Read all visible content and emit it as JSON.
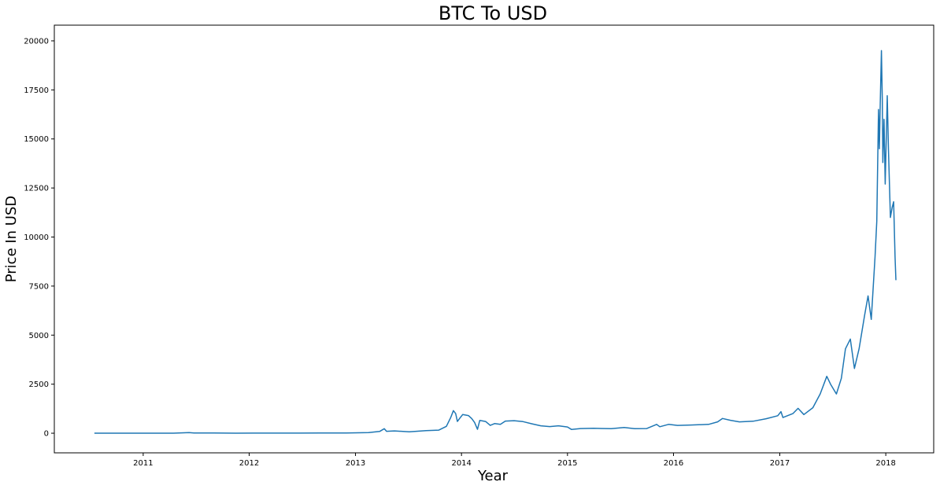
{
  "chart_data": {
    "type": "line",
    "title": "BTC To USD",
    "xlabel": "Year",
    "ylabel": "Price In USD",
    "xlim": [
      "2010-03-01",
      "2018-06-15"
    ],
    "ylim": [
      -1000,
      20800
    ],
    "x_ticks": [
      {
        "date": "2011-01-01",
        "label": "2011"
      },
      {
        "date": "2012-01-01",
        "label": "2012"
      },
      {
        "date": "2013-01-01",
        "label": "2013"
      },
      {
        "date": "2014-01-01",
        "label": "2014"
      },
      {
        "date": "2015-01-01",
        "label": "2015"
      },
      {
        "date": "2016-01-01",
        "label": "2016"
      },
      {
        "date": "2017-01-01",
        "label": "2017"
      },
      {
        "date": "2018-01-01",
        "label": "2018"
      }
    ],
    "y_ticks": [
      {
        "value": 0,
        "label": "0"
      },
      {
        "value": 2500,
        "label": "2500"
      },
      {
        "value": 5000,
        "label": "5000"
      },
      {
        "value": 7500,
        "label": "7500"
      },
      {
        "value": 10000,
        "label": "10000"
      },
      {
        "value": 12500,
        "label": "12500"
      },
      {
        "value": 15000,
        "label": "15000"
      },
      {
        "value": 17500,
        "label": "17500"
      },
      {
        "value": 20000,
        "label": "20000"
      }
    ],
    "grid": false,
    "series": [
      {
        "color": "#1f77b4",
        "points": [
          [
            "2010-07-17",
            0.05
          ],
          [
            "2010-11-01",
            0.3
          ],
          [
            "2011-02-01",
            1
          ],
          [
            "2011-04-15",
            1.5
          ],
          [
            "2011-06-08",
            30
          ],
          [
            "2011-06-25",
            15
          ],
          [
            "2011-09-01",
            8
          ],
          [
            "2011-11-15",
            2.5
          ],
          [
            "2012-01-15",
            6
          ],
          [
            "2012-06-01",
            6
          ],
          [
            "2012-09-01",
            12
          ],
          [
            "2012-12-01",
            13
          ],
          [
            "2013-02-15",
            30
          ],
          [
            "2013-03-25",
            90
          ],
          [
            "2013-04-10",
            230
          ],
          [
            "2013-04-18",
            100
          ],
          [
            "2013-05-15",
            120
          ],
          [
            "2013-07-05",
            70
          ],
          [
            "2013-09-01",
            135
          ],
          [
            "2013-10-15",
            160
          ],
          [
            "2013-11-10",
            350
          ],
          [
            "2013-11-25",
            800
          ],
          [
            "2013-12-04",
            1150
          ],
          [
            "2013-12-12",
            1000
          ],
          [
            "2013-12-18",
            600
          ],
          [
            "2013-12-28",
            800
          ],
          [
            "2014-01-05",
            950
          ],
          [
            "2014-01-25",
            900
          ],
          [
            "2014-02-05",
            750
          ],
          [
            "2014-02-15",
            550
          ],
          [
            "2014-02-25",
            200
          ],
          [
            "2014-03-05",
            650
          ],
          [
            "2014-03-25",
            600
          ],
          [
            "2014-04-10",
            400
          ],
          [
            "2014-04-25",
            490
          ],
          [
            "2014-05-15",
            450
          ],
          [
            "2014-06-01",
            620
          ],
          [
            "2014-07-01",
            640
          ],
          [
            "2014-08-01",
            590
          ],
          [
            "2014-09-01",
            480
          ],
          [
            "2014-10-01",
            380
          ],
          [
            "2014-11-01",
            340
          ],
          [
            "2014-12-01",
            380
          ],
          [
            "2015-01-01",
            320
          ],
          [
            "2015-01-15",
            190
          ],
          [
            "2015-02-15",
            240
          ],
          [
            "2015-04-01",
            250
          ],
          [
            "2015-06-01",
            230
          ],
          [
            "2015-07-15",
            290
          ],
          [
            "2015-08-20",
            230
          ],
          [
            "2015-10-01",
            240
          ],
          [
            "2015-11-04",
            450
          ],
          [
            "2015-11-15",
            330
          ],
          [
            "2015-12-15",
            450
          ],
          [
            "2016-01-15",
            400
          ],
          [
            "2016-03-01",
            420
          ],
          [
            "2016-05-01",
            450
          ],
          [
            "2016-06-01",
            580
          ],
          [
            "2016-06-18",
            750
          ],
          [
            "2016-07-15",
            660
          ],
          [
            "2016-08-15",
            580
          ],
          [
            "2016-10-01",
            610
          ],
          [
            "2016-11-15",
            740
          ],
          [
            "2016-12-25",
            890
          ],
          [
            "2017-01-05",
            1100
          ],
          [
            "2017-01-12",
            800
          ],
          [
            "2017-02-15",
            1000
          ],
          [
            "2017-03-05",
            1270
          ],
          [
            "2017-03-25",
            950
          ],
          [
            "2017-04-25",
            1300
          ],
          [
            "2017-05-20",
            2000
          ],
          [
            "2017-06-12",
            2900
          ],
          [
            "2017-06-25",
            2500
          ],
          [
            "2017-07-15",
            2000
          ],
          [
            "2017-08-01",
            2800
          ],
          [
            "2017-08-15",
            4300
          ],
          [
            "2017-09-01",
            4800
          ],
          [
            "2017-09-15",
            3300
          ],
          [
            "2017-10-01",
            4300
          ],
          [
            "2017-10-20",
            6000
          ],
          [
            "2017-11-01",
            7000
          ],
          [
            "2017-11-12",
            5800
          ],
          [
            "2017-11-25",
            9000
          ],
          [
            "2017-12-01",
            10800
          ],
          [
            "2017-12-07",
            16500
          ],
          [
            "2017-12-10",
            14500
          ],
          [
            "2017-12-13",
            16800
          ],
          [
            "2017-12-17",
            19500
          ],
          [
            "2017-12-20",
            17000
          ],
          [
            "2017-12-22",
            13800
          ],
          [
            "2017-12-26",
            16000
          ],
          [
            "2017-12-30",
            12700
          ],
          [
            "2018-01-06",
            17200
          ],
          [
            "2018-01-10",
            14500
          ],
          [
            "2018-01-17",
            11000
          ],
          [
            "2018-01-23",
            11500
          ],
          [
            "2018-01-28",
            11800
          ],
          [
            "2018-02-02",
            9000
          ],
          [
            "2018-02-05",
            7800
          ]
        ]
      }
    ]
  }
}
